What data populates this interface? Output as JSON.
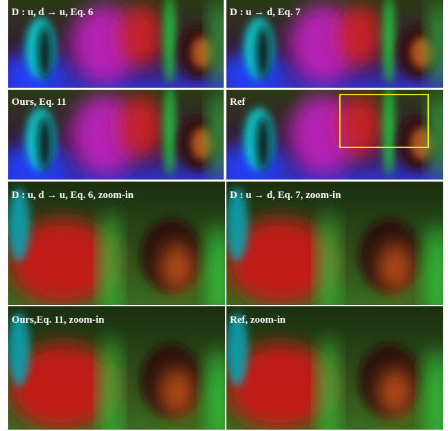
{
  "panels": [
    {
      "label": "D : u, d → u, Eq. 6"
    },
    {
      "label": "D : u → d, Eq. 7"
    },
    {
      "label": "Ours, Eq. 11"
    },
    {
      "label": "Ref"
    },
    {
      "label": "D : u, d → u, Eq. 6, zoom-in"
    },
    {
      "label": "D : u → d, Eq. 7, zoom-in"
    },
    {
      "label": "Ours,Eq. 11, zoom-in"
    },
    {
      "label": "Ref, zoom-in"
    }
  ]
}
